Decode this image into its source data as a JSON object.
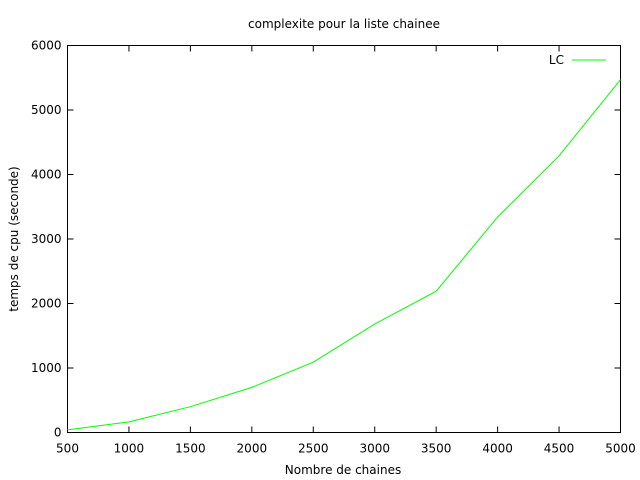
{
  "chart_data": {
    "type": "line",
    "title": "complexite pour la liste chainee",
    "xlabel": "Nombre de chaines",
    "ylabel": "temps de cpu (seconde)",
    "xlim": [
      500,
      5000
    ],
    "ylim": [
      0,
      6000
    ],
    "x_ticks": [
      500,
      1000,
      1500,
      2000,
      2500,
      3000,
      3500,
      4000,
      4500,
      5000
    ],
    "y_ticks": [
      0,
      1000,
      2000,
      3000,
      4000,
      5000,
      6000
    ],
    "grid": false,
    "legend_position": "top-right",
    "series": [
      {
        "name": "LC",
        "color": "#00ff00",
        "x": [
          500,
          1000,
          1500,
          2000,
          2500,
          3000,
          3500,
          4000,
          4500,
          5000
        ],
        "y": [
          40,
          165,
          400,
          700,
          1090,
          1680,
          2190,
          3340,
          4290,
          5470
        ]
      }
    ]
  }
}
